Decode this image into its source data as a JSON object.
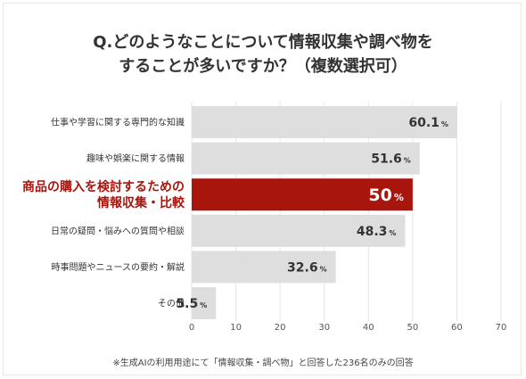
{
  "title_line1": "Q.どのようなことについて情報収集や調べ物を",
  "title_line2": "することが多いですか？（複数選択可）",
  "footnote": "※生成AIの利用用途にて「情報収集・調べ物」と回答した236名のみの回答",
  "colors": {
    "bar": "#dedede",
    "highlight_bar": "#a8150d",
    "highlight_label": "#a8150d",
    "value_text": "#333333",
    "grid": "#e4e4e4"
  },
  "chart_data": {
    "type": "bar",
    "orientation": "horizontal",
    "categories": [
      [
        "仕事や学習に関する専門的な知識"
      ],
      [
        "趣味や娯楽に関する情報"
      ],
      [
        "商品の購入を検討するための",
        "情報収集・比較"
      ],
      [
        "日常の疑問・悩みへの質問や相談"
      ],
      [
        "時事問題やニュースの要約・解説"
      ],
      [
        "その他"
      ]
    ],
    "values": [
      60.1,
      51.6,
      50,
      48.3,
      32.6,
      5.5
    ],
    "value_labels": [
      "60.1",
      "51.6",
      "50",
      "48.3",
      "32.6",
      "5.5"
    ],
    "unit": "%",
    "highlight_index": 2,
    "xlim": [
      0,
      70
    ],
    "xticks": [
      0,
      10,
      20,
      30,
      40,
      50,
      60,
      70
    ],
    "grid": true,
    "xlabel": "",
    "ylabel": ""
  }
}
